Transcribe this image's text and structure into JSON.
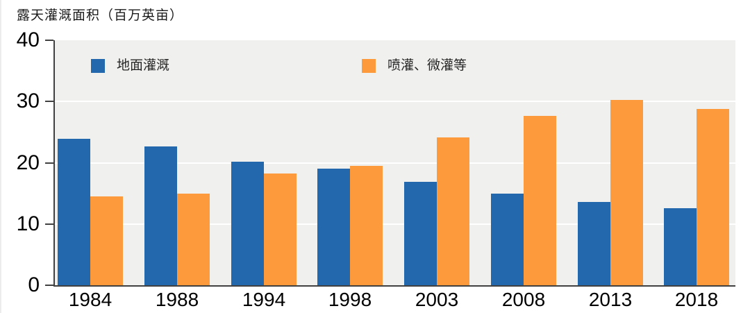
{
  "title": "露天灌溉面积（百万英亩）",
  "chart_data": {
    "type": "bar",
    "title": "露天灌溉面积（百万英亩）",
    "categories": [
      "1984",
      "1988",
      "1994",
      "1998",
      "2003",
      "2008",
      "2013",
      "2018"
    ],
    "series": [
      {
        "name": "地面灌溉",
        "color": "#2368ac",
        "values": [
          23.9,
          22.7,
          20.2,
          19.0,
          16.9,
          15.0,
          13.6,
          12.6
        ]
      },
      {
        "name": "喷灌、微灌等",
        "color": "#fc9a3c",
        "values": [
          14.5,
          15.0,
          18.3,
          19.5,
          24.1,
          27.6,
          30.2,
          28.8
        ]
      }
    ],
    "xlabel": "",
    "ylabel": "百万英亩",
    "ylim": [
      0,
      40
    ],
    "yticks": [
      0,
      10,
      20,
      30,
      40
    ],
    "grid": true,
    "grid_color": "#ffffff",
    "plot_bg": "#f0f0ee",
    "axis_color": "#404040",
    "legend_position": "top-inside"
  }
}
